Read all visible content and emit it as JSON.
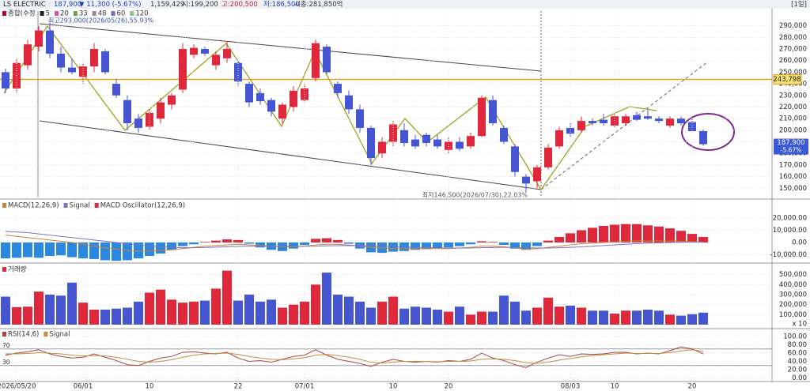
{
  "header": {
    "name": "LS ELECTRIC",
    "price": "187,900",
    "change": "▼ 11,300 (-5.67%)",
    "volume": "1,159,429",
    "open": "시:199,200",
    "high": "고:200,500",
    "low": "저:186,500",
    "market_cap": "시총:281,850억",
    "period": "[1일]"
  },
  "chart_data": [
    {
      "type": "candlestick",
      "legend": [
        {
          "name": "종합(수정",
          "color": "#c0002a"
        },
        {
          "name": "5",
          "color": "#222222"
        },
        {
          "name": "20",
          "color": "#e050a0"
        },
        {
          "name": "33",
          "color": "#70a050"
        },
        {
          "name": "48",
          "color": "#909090"
        },
        {
          "name": "60",
          "color": "#7070c0"
        },
        {
          "name": "120",
          "color": "#90c090"
        }
      ],
      "categories": [
        null,
        "2026/05/20",
        null,
        null,
        null,
        null,
        null,
        "06/01",
        null,
        null,
        null,
        null,
        null,
        "10",
        null,
        null,
        null,
        null,
        null,
        null,
        null,
        "22",
        null,
        null,
        null,
        null,
        null,
        "07/01",
        null,
        null,
        null,
        null,
        null,
        null,
        null,
        "10",
        null,
        null,
        null,
        null,
        "20",
        null,
        null,
        null,
        null,
        null,
        null,
        null,
        null,
        null,
        null,
        "08/03",
        null,
        null,
        null,
        "10",
        null,
        null,
        null,
        null,
        null,
        null,
        "20",
        null
      ],
      "open": [
        250000,
        236000,
        256000,
        272000,
        286000,
        266000,
        254000,
        246000,
        255000,
        268000,
        240000,
        226000,
        210000,
        203000,
        210000,
        222000,
        235000,
        265000,
        270000,
        256000,
        262000,
        258000,
        240000,
        232000,
        226000,
        210000,
        220000,
        226000,
        245000,
        272000,
        240000,
        230000,
        218000,
        202000,
        180000,
        190000,
        200000,
        192000,
        196000,
        192000,
        183000,
        190000,
        186000,
        195000,
        226000,
        202000,
        186000,
        160000,
        156000,
        168000,
        186000,
        202000,
        200000,
        208000,
        209000,
        204000,
        206000,
        213000,
        212000,
        210000,
        204000,
        210000,
        207000,
        199200
      ],
      "high": [
        253000,
        262000,
        278000,
        290000,
        293000,
        272000,
        262000,
        258000,
        275000,
        270000,
        244000,
        230000,
        214000,
        218000,
        228000,
        232000,
        275000,
        274000,
        272000,
        268000,
        276000,
        260000,
        242000,
        236000,
        228000,
        224000,
        238000,
        240000,
        278000,
        274000,
        242000,
        234000,
        222000,
        204000,
        194000,
        208000,
        206000,
        196000,
        198000,
        196000,
        194000,
        194000,
        198000,
        230000,
        230000,
        204000,
        188000,
        162000,
        170000,
        188000,
        203000,
        206000,
        212000,
        210000,
        214000,
        214000,
        214000,
        216000,
        218000,
        212000,
        212000,
        212000,
        210000,
        200500
      ],
      "low": [
        232000,
        232000,
        252000,
        268000,
        262000,
        250000,
        248000,
        240000,
        250000,
        248000,
        228000,
        200000,
        198000,
        200000,
        206000,
        218000,
        232000,
        262000,
        264000,
        252000,
        258000,
        238000,
        220000,
        222000,
        212000,
        206000,
        216000,
        224000,
        242000,
        248000,
        228000,
        214000,
        198000,
        170000,
        176000,
        186000,
        186000,
        184000,
        186000,
        184000,
        180000,
        182000,
        184000,
        194000,
        204000,
        188000,
        160000,
        146500,
        150000,
        166000,
        184000,
        194000,
        198000,
        204000,
        204000,
        202000,
        204000,
        208000,
        209000,
        206000,
        202000,
        204000,
        199000,
        186500
      ],
      "close": [
        236000,
        258000,
        274000,
        286000,
        266000,
        254000,
        250000,
        255000,
        270000,
        250000,
        230000,
        206000,
        202000,
        215000,
        224000,
        230000,
        270000,
        271000,
        266000,
        265000,
        270000,
        242000,
        224000,
        225000,
        216000,
        222000,
        234000,
        236000,
        275000,
        250000,
        232000,
        218000,
        202000,
        176000,
        190000,
        205000,
        189000,
        186000,
        189000,
        186000,
        190000,
        184000,
        195000,
        228000,
        206000,
        190000,
        164000,
        154000,
        168000,
        185000,
        200000,
        197000,
        208000,
        206000,
        206000,
        212000,
        212000,
        209000,
        210000,
        208000,
        210000,
        206000,
        199200,
        187900
      ],
      "up_color": "#e0283c",
      "down_color": "#4656d2",
      "ylim": [
        142000,
        300000
      ],
      "yticks": [
        {
          "value": 150000,
          "label": "150,000"
        },
        {
          "value": 160000,
          "label": "160,000"
        },
        {
          "value": 170000,
          "label": "170,000"
        },
        {
          "value": 180000,
          "label": "180,000"
        },
        {
          "value": 190000,
          "label": "190,000"
        },
        {
          "value": 200000,
          "label": "200,000"
        },
        {
          "value": 210000,
          "label": "210,000"
        },
        {
          "value": 220000,
          "label": "220,000"
        },
        {
          "value": 230000,
          "label": "230,000"
        },
        {
          "value": 240000,
          "label": "240,000"
        },
        {
          "value": 250000,
          "label": "250,000"
        },
        {
          "value": 260000,
          "label": "260,000"
        },
        {
          "value": 270000,
          "label": "270,000"
        },
        {
          "value": 280000,
          "label": "280,000"
        },
        {
          "value": 290000,
          "label": "290,000"
        }
      ],
      "grid": true,
      "annotations": [
        "최고293,000(2026/05/26),55.93%",
        "최저146,500(2026/07/30),22.03%"
      ],
      "reference_line": {
        "value": 243798,
        "label": "243,798",
        "color": "#e0a020"
      },
      "last_price": {
        "value": 187900,
        "label": "187,900",
        "change": "-5.67%"
      }
    },
    {
      "type": "macd",
      "series": [
        {
          "name": "MACD(12,26,9)",
          "color": "#d08030",
          "type": "line",
          "values": [
            6000,
            5000,
            4000,
            3000,
            2000,
            1000,
            0,
            -1500,
            -3000,
            -4500,
            -5500,
            -6500,
            -7000,
            -7000,
            -6500,
            -6000,
            -5000,
            -4000,
            -3000,
            -2500,
            -2000,
            -1500,
            -2000,
            -2500,
            -3000,
            -3500,
            -3500,
            -3000,
            -2000,
            -1500,
            -1500,
            -2000,
            -3000,
            -4000,
            -4500,
            -5000,
            -5000,
            -5000,
            -5000,
            -5000,
            -5000,
            -4500,
            -4000,
            -3000,
            -3000,
            -3500,
            -4500,
            -5500,
            -5000,
            -4000,
            -3000,
            -2000,
            -1000,
            -500,
            0,
            500,
            1000,
            1200,
            1300,
            1300,
            1200,
            1000,
            700,
            300
          ]
        },
        {
          "name": "Signal",
          "color": "#8070c0",
          "type": "line",
          "values": [
            9000,
            8500,
            8000,
            7000,
            6000,
            5000,
            4000,
            3000,
            2000,
            1000,
            0,
            -1000,
            -2000,
            -3000,
            -3500,
            -4000,
            -4300,
            -4300,
            -4100,
            -3800,
            -3500,
            -3200,
            -3000,
            -2900,
            -2900,
            -3000,
            -3100,
            -3100,
            -3000,
            -2800,
            -2600,
            -2500,
            -2600,
            -2800,
            -3100,
            -3400,
            -3700,
            -4000,
            -4200,
            -4400,
            -4500,
            -4500,
            -4500,
            -4300,
            -4100,
            -4000,
            -4100,
            -4300,
            -4500,
            -4500,
            -4300,
            -4000,
            -3600,
            -3100,
            -2500,
            -2000,
            -1500,
            -1000,
            -600,
            -300,
            0,
            200,
            300,
            400
          ]
        },
        {
          "name": "MACD Oscillator(12,26,9)",
          "color": "#e0283c",
          "negative_color": "#2a88e0",
          "type": "bar",
          "values": [
            -13000,
            -12500,
            -12000,
            -12500,
            -11000,
            -10500,
            -12000,
            -13000,
            -13500,
            -14500,
            -15000,
            -14500,
            -13000,
            -11000,
            -9000,
            -6000,
            -3000,
            -1500,
            500,
            1500,
            2500,
            2000,
            -1000,
            -4000,
            -6000,
            -7000,
            -5000,
            -2000,
            3000,
            3500,
            2000,
            -1000,
            -5000,
            -8000,
            -8500,
            -7500,
            -7000,
            -6000,
            -5500,
            -4500,
            -4000,
            -3000,
            -1500,
            1000,
            500,
            -2000,
            -5000,
            -6000,
            -3000,
            1500,
            4500,
            7500,
            10000,
            12000,
            13500,
            14500,
            15000,
            15000,
            14000,
            13000,
            11500,
            9500,
            7000,
            4500
          ]
        }
      ],
      "ylim": [
        -15500,
        33500
      ],
      "yticks": [
        {
          "value": -10000,
          "label": "-10,000.00"
        },
        {
          "value": 0,
          "label": "0.00"
        },
        {
          "value": 10000,
          "label": "10,000.00"
        },
        {
          "value": 20000,
          "label": "20,000.00"
        }
      ]
    },
    {
      "type": "bar",
      "title": "거래량",
      "values": [
        280000,
        175000,
        180000,
        330000,
        300000,
        290000,
        420000,
        220000,
        150000,
        150000,
        160000,
        170000,
        230000,
        320000,
        350000,
        250000,
        220000,
        230000,
        240000,
        360000,
        540000,
        240000,
        300000,
        230000,
        250000,
        170000,
        200000,
        230000,
        400000,
        520000,
        300000,
        280000,
        230000,
        170000,
        230000,
        280000,
        160000,
        180000,
        170000,
        150000,
        130000,
        180000,
        100000,
        130000,
        130000,
        290000,
        230000,
        140000,
        170000,
        270000,
        180000,
        190000,
        170000,
        140000,
        140000,
        110000,
        140000,
        140000,
        150000,
        140000,
        100000,
        90000,
        105000,
        120000
      ],
      "ylim": [
        0,
        600000
      ],
      "yticks": [
        {
          "value": 100000,
          "label": "100,000"
        },
        {
          "value": 200000,
          "label": "200,000"
        },
        {
          "value": 300000,
          "label": "300,000"
        },
        {
          "value": 400000,
          "label": "400,000"
        },
        {
          "value": 500000,
          "label": "500,000"
        }
      ],
      "unit": "x 10"
    },
    {
      "type": "line",
      "series": [
        {
          "name": "RSI(14,6)",
          "color": "#b04040",
          "values": [
            55,
            60,
            63,
            68,
            58,
            52,
            48,
            50,
            58,
            50,
            42,
            32,
            30,
            40,
            48,
            52,
            62,
            63,
            60,
            58,
            62,
            48,
            40,
            42,
            38,
            45,
            52,
            55,
            68,
            55,
            45,
            40,
            35,
            28,
            38,
            45,
            40,
            38,
            40,
            38,
            42,
            40,
            45,
            60,
            48,
            42,
            32,
            25,
            38,
            48,
            56,
            52,
            58,
            57,
            58,
            62,
            62,
            58,
            60,
            58,
            66,
            75,
            70,
            58
          ]
        },
        {
          "name": "Signal",
          "color": "#c09040",
          "values": [
            58,
            58,
            59,
            61,
            60,
            58,
            55,
            53,
            54,
            53,
            50,
            45,
            40,
            38,
            40,
            44,
            50,
            55,
            58,
            59,
            60,
            57,
            52,
            48,
            45,
            44,
            46,
            49,
            55,
            57,
            54,
            50,
            45,
            38,
            36,
            38,
            40,
            40,
            40,
            39,
            40,
            40,
            41,
            45,
            46,
            45,
            42,
            37,
            35,
            38,
            43,
            47,
            51,
            54,
            56,
            58,
            60,
            59,
            59,
            59,
            61,
            65,
            68,
            64
          ]
        }
      ],
      "levels": [
        70,
        30
      ],
      "ylim": [
        0,
        100
      ],
      "yticks": [
        {
          "value": 0,
          "label": "0.00"
        },
        {
          "value": 20,
          "label": "20.00"
        },
        {
          "value": 40,
          "label": "40.00"
        },
        {
          "value": 60,
          "label": "60.00"
        },
        {
          "value": 80,
          "label": "80.00"
        },
        {
          "value": 100,
          "label": "100.00"
        }
      ]
    }
  ]
}
